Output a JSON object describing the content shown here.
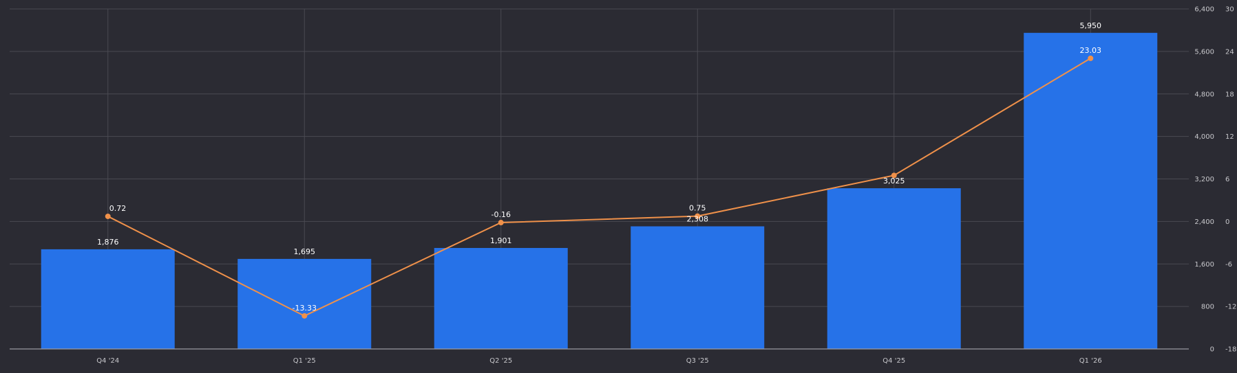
{
  "chart_data": {
    "type": "bar",
    "categories": [
      "Q4 '24",
      "Q1 '25",
      "Q2 '25",
      "Q3 '25",
      "Q4 '25",
      "Q1 '26"
    ],
    "bar_series": {
      "values": [
        1876,
        1695,
        1901,
        2308,
        3025,
        5950
      ],
      "value_labels": [
        "1,876",
        "1,695",
        "1,901",
        "2,308",
        "3,025",
        "5,950"
      ],
      "color": "#2672e8"
    },
    "line_series": {
      "values": [
        0.72,
        -13.33,
        -0.16,
        0.75,
        6.5,
        23.03
      ],
      "value_labels": [
        "0.72",
        "-13.33",
        "-0.16",
        "0.75",
        "",
        "23.03"
      ],
      "color": "#f0914a"
    },
    "y_left": {
      "ylim": [
        0,
        6400
      ],
      "ticks": [
        0,
        800,
        1600,
        2400,
        3200,
        4000,
        4800,
        5600,
        6400
      ],
      "tick_labels": [
        "0",
        "800",
        "1,600",
        "2,400",
        "3,200",
        "4,000",
        "4,800",
        "5,600",
        "6,400"
      ]
    },
    "y_right": {
      "ylim": [
        -18,
        30
      ],
      "ticks": [
        -18,
        -12,
        -6,
        0,
        6,
        12,
        18,
        24,
        30
      ],
      "tick_labels": [
        "-18",
        "-12",
        "-6",
        "0",
        "6",
        "12",
        "18",
        "24",
        "30"
      ]
    },
    "title": "",
    "xlabel": "",
    "ylabel": "",
    "grid": true,
    "legend": "none"
  },
  "colors": {
    "background": "#2b2b33",
    "grid": "#4a4a52",
    "axis": "#9a9aa2",
    "text": "#c8c8cc"
  }
}
